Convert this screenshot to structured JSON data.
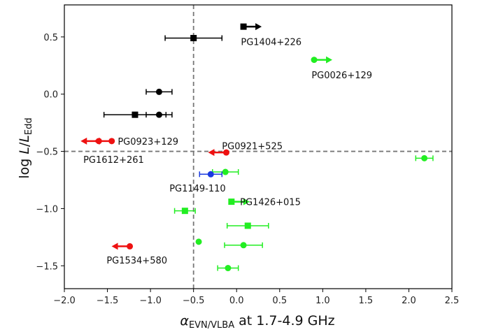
{
  "chart_data": {
    "type": "scatter",
    "xlabel": {
      "sym": "α",
      "sub": "EVN/VLBA",
      "rest": " at 1.7-4.9 GHz"
    },
    "ylabel": {
      "pre": "log ",
      "L1": "L",
      "slash": "/",
      "L2": "L",
      "sub": "Edd"
    },
    "xlim": [
      -2.0,
      2.5
    ],
    "ylim": [
      -1.7,
      0.78
    ],
    "xticks": [
      -2.0,
      -1.5,
      -1.0,
      -0.5,
      0.0,
      0.5,
      1.0,
      1.5,
      2.0,
      2.5
    ],
    "xtick_labels": [
      "−2.0",
      "−1.5",
      "−1.0",
      "−0.5",
      "0.0",
      "0.5",
      "1.0",
      "1.5",
      "2.0",
      "2.5"
    ],
    "yticks": [
      -1.5,
      -1.0,
      -0.5,
      0.0,
      0.5
    ],
    "ytick_labels": [
      "−1.5",
      "−1.0",
      "−0.5",
      "0.0",
      "0.5"
    ],
    "grid": false,
    "ref_lines": {
      "x": -0.5,
      "y": -0.5
    },
    "colors": {
      "black": "#000000",
      "green": "#22ee22",
      "red": "#ee1111",
      "blue": "#1a3ae0"
    },
    "points": [
      {
        "x": -0.5,
        "y": 0.49,
        "marker": "square",
        "color": "black",
        "xerr": [
          0.33,
          0.33
        ]
      },
      {
        "x": 0.08,
        "y": 0.59,
        "marker": "square",
        "color": "black",
        "arrow": "right"
      },
      {
        "x": -0.9,
        "y": 0.02,
        "marker": "circle",
        "color": "black",
        "xerr": [
          0.15,
          0.15
        ]
      },
      {
        "x": -1.18,
        "y": -0.18,
        "marker": "square",
        "color": "black",
        "xerr": [
          0.36,
          0.36
        ]
      },
      {
        "x": -0.9,
        "y": -0.18,
        "marker": "circle",
        "color": "black",
        "xerr": [
          0.15,
          0.15
        ]
      },
      {
        "x": 0.9,
        "y": 0.3,
        "marker": "circle",
        "color": "green",
        "arrow": "right"
      },
      {
        "x": -1.45,
        "y": -0.41,
        "marker": "circle",
        "color": "red",
        "arrow": "left"
      },
      {
        "x": -1.6,
        "y": -0.41,
        "marker": "circle",
        "color": "red",
        "arrow": "left"
      },
      {
        "x": -0.12,
        "y": -0.51,
        "marker": "circle",
        "color": "red",
        "arrow": "left"
      },
      {
        "x": 2.18,
        "y": -0.56,
        "marker": "circle",
        "color": "green",
        "xerr": [
          0.1,
          0.1
        ]
      },
      {
        "x": -0.13,
        "y": -0.68,
        "marker": "circle",
        "color": "green",
        "xerr": [
          0.15,
          0.15
        ]
      },
      {
        "x": -0.3,
        "y": -0.7,
        "marker": "circle",
        "color": "blue",
        "xerr": [
          0.13,
          0.13
        ]
      },
      {
        "x": -0.06,
        "y": -0.94,
        "marker": "square",
        "color": "green",
        "arrow": "right"
      },
      {
        "x": -0.6,
        "y": -1.02,
        "marker": "square",
        "color": "green",
        "xerr": [
          0.12,
          0.12
        ]
      },
      {
        "x": 0.13,
        "y": -1.15,
        "marker": "square",
        "color": "green",
        "xerr": [
          0.24,
          0.24
        ]
      },
      {
        "x": -0.44,
        "y": -1.29,
        "marker": "circle",
        "color": "green"
      },
      {
        "x": 0.08,
        "y": -1.32,
        "marker": "circle",
        "color": "green",
        "xerr": [
          0.22,
          0.22
        ]
      },
      {
        "x": -1.24,
        "y": -1.33,
        "marker": "circle",
        "color": "red",
        "arrow": "left"
      },
      {
        "x": -0.1,
        "y": -1.52,
        "marker": "circle",
        "color": "green",
        "xerr": [
          0.12,
          0.12
        ]
      }
    ],
    "annotations": [
      {
        "text": "PG1404+226",
        "x": 0.05,
        "y": 0.46
      },
      {
        "text": "PG0026+129",
        "x": 0.87,
        "y": 0.17
      },
      {
        "text": "PG0923+129",
        "x": -1.38,
        "y": -0.41
      },
      {
        "text": "PG0921+525",
        "x": -0.17,
        "y": -0.45
      },
      {
        "text": "PG1612+261",
        "x": -1.78,
        "y": -0.57
      },
      {
        "text": "PG1149-110",
        "x": -0.78,
        "y": -0.82
      },
      {
        "text": "PG1426+015",
        "x": 0.04,
        "y": -0.94
      },
      {
        "text": "PG1534+580",
        "x": -1.51,
        "y": -1.45
      }
    ]
  }
}
